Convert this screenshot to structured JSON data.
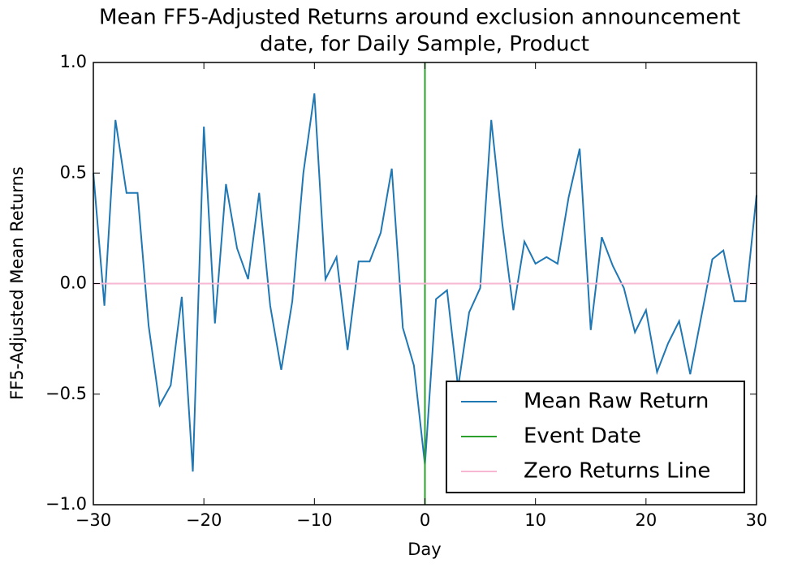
{
  "chart_data": {
    "type": "line",
    "title": [
      "Mean FF5-Adjusted Returns around exclusion announcement",
      "date, for Daily Sample, Product"
    ],
    "xlabel": "Day",
    "ylabel": "FF5-Adjusted Mean Returns",
    "xlim": [
      -30,
      30
    ],
    "ylim": [
      -1.0,
      1.0
    ],
    "xticks": [
      {
        "value": -30,
        "label": "−30"
      },
      {
        "value": -20,
        "label": "−20"
      },
      {
        "value": -10,
        "label": "−10"
      },
      0,
      10,
      20,
      30
    ],
    "yticks": [
      {
        "value": -1.0,
        "label": "−1.0"
      },
      {
        "value": -0.5,
        "label": "−0.5"
      },
      {
        "value": 0.0,
        "label": "0.0"
      },
      {
        "value": 0.5,
        "label": "0.5"
      },
      {
        "value": 1.0,
        "label": "1.0"
      }
    ],
    "legend": "lower right",
    "series": [
      {
        "name": "Mean Raw Return",
        "color": "#1f77b4",
        "x": [
          -30,
          -29,
          -28,
          -27,
          -26,
          -25,
          -24,
          -23,
          -22,
          -21,
          -20,
          -19,
          -18,
          -17,
          -16,
          -15,
          -14,
          -13,
          -12,
          -11,
          -10,
          -9,
          -8,
          -7,
          -6,
          -5,
          -4,
          -3,
          -2,
          -1,
          0,
          1,
          2,
          3,
          4,
          5,
          6,
          7,
          8,
          9,
          10,
          11,
          12,
          13,
          14,
          15,
          16,
          17,
          18,
          19,
          20,
          21,
          22,
          23,
          24,
          25,
          26,
          27,
          28,
          29,
          30
        ],
        "values": [
          0.5,
          -0.1,
          0.74,
          0.41,
          0.41,
          -0.19,
          -0.55,
          -0.46,
          -0.06,
          -0.85,
          0.71,
          -0.18,
          0.45,
          0.16,
          0.02,
          0.41,
          -0.1,
          -0.39,
          -0.08,
          0.5,
          0.86,
          0.02,
          0.12,
          -0.3,
          0.1,
          0.1,
          0.23,
          0.52,
          -0.2,
          -0.37,
          -0.82,
          -0.07,
          -0.03,
          -0.47,
          -0.13,
          -0.02,
          0.74,
          0.27,
          -0.12,
          0.19,
          0.09,
          0.12,
          0.09,
          0.39,
          0.61,
          -0.21,
          0.21,
          0.08,
          -0.02,
          -0.22,
          -0.12,
          -0.4,
          -0.27,
          -0.17,
          -0.41,
          -0.15,
          0.11,
          0.15,
          -0.08,
          -0.08,
          0.4
        ]
      },
      {
        "name": "Event Date",
        "color": "#2ca02c",
        "x": [
          0,
          0
        ],
        "values": [
          -1.0,
          1.0
        ]
      },
      {
        "name": "Zero Returns Line",
        "color": "#f7b6d2",
        "x": [
          -30,
          30
        ],
        "values": [
          0.0,
          0.0
        ]
      }
    ]
  }
}
